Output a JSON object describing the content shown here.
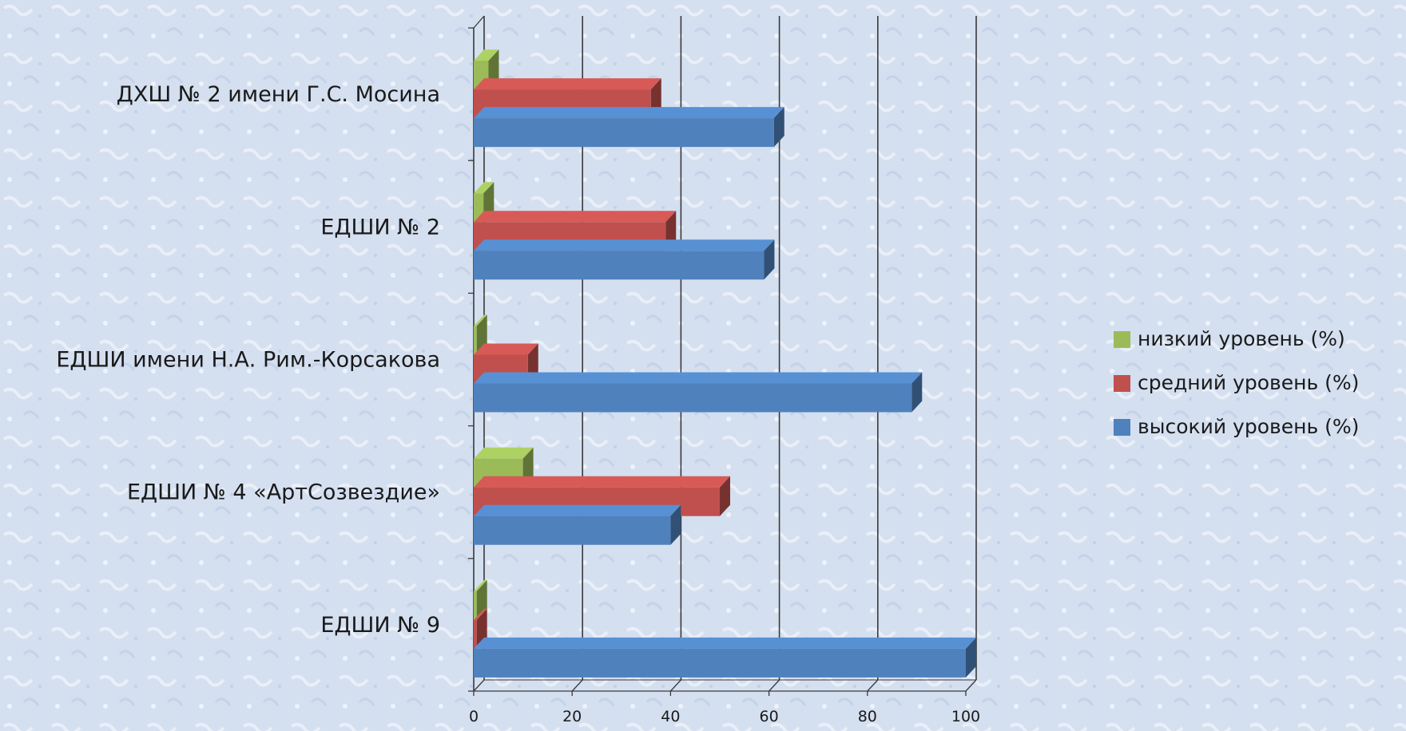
{
  "chart_data": {
    "type": "bar",
    "orientation": "horizontal",
    "three_d": true,
    "categories": [
      "ДХШ № 2 имени Г.С. Мосина",
      "ЕДШИ № 2",
      "ЕДШИ имени Н.А. Рим.-Корсакова",
      "ЕДШИ № 4 «АртСозвездие»",
      "ЕДШИ № 9"
    ],
    "series": [
      {
        "name": "низкий уровень (%)",
        "color": "#9bbb59",
        "values": [
          3,
          2,
          0,
          10,
          0
        ]
      },
      {
        "name": "средний уровень (%)",
        "color": "#c0504d",
        "values": [
          36,
          39,
          11,
          50,
          0
        ]
      },
      {
        "name": "высокий уровень (%)",
        "color": "#4f81bd",
        "values": [
          61,
          59,
          89,
          40,
          100
        ]
      }
    ],
    "xlim": [
      0,
      100
    ],
    "x_ticks": [
      "0",
      "20",
      "40",
      "60",
      "80",
      "100"
    ],
    "grid": true,
    "legend_position": "right"
  }
}
